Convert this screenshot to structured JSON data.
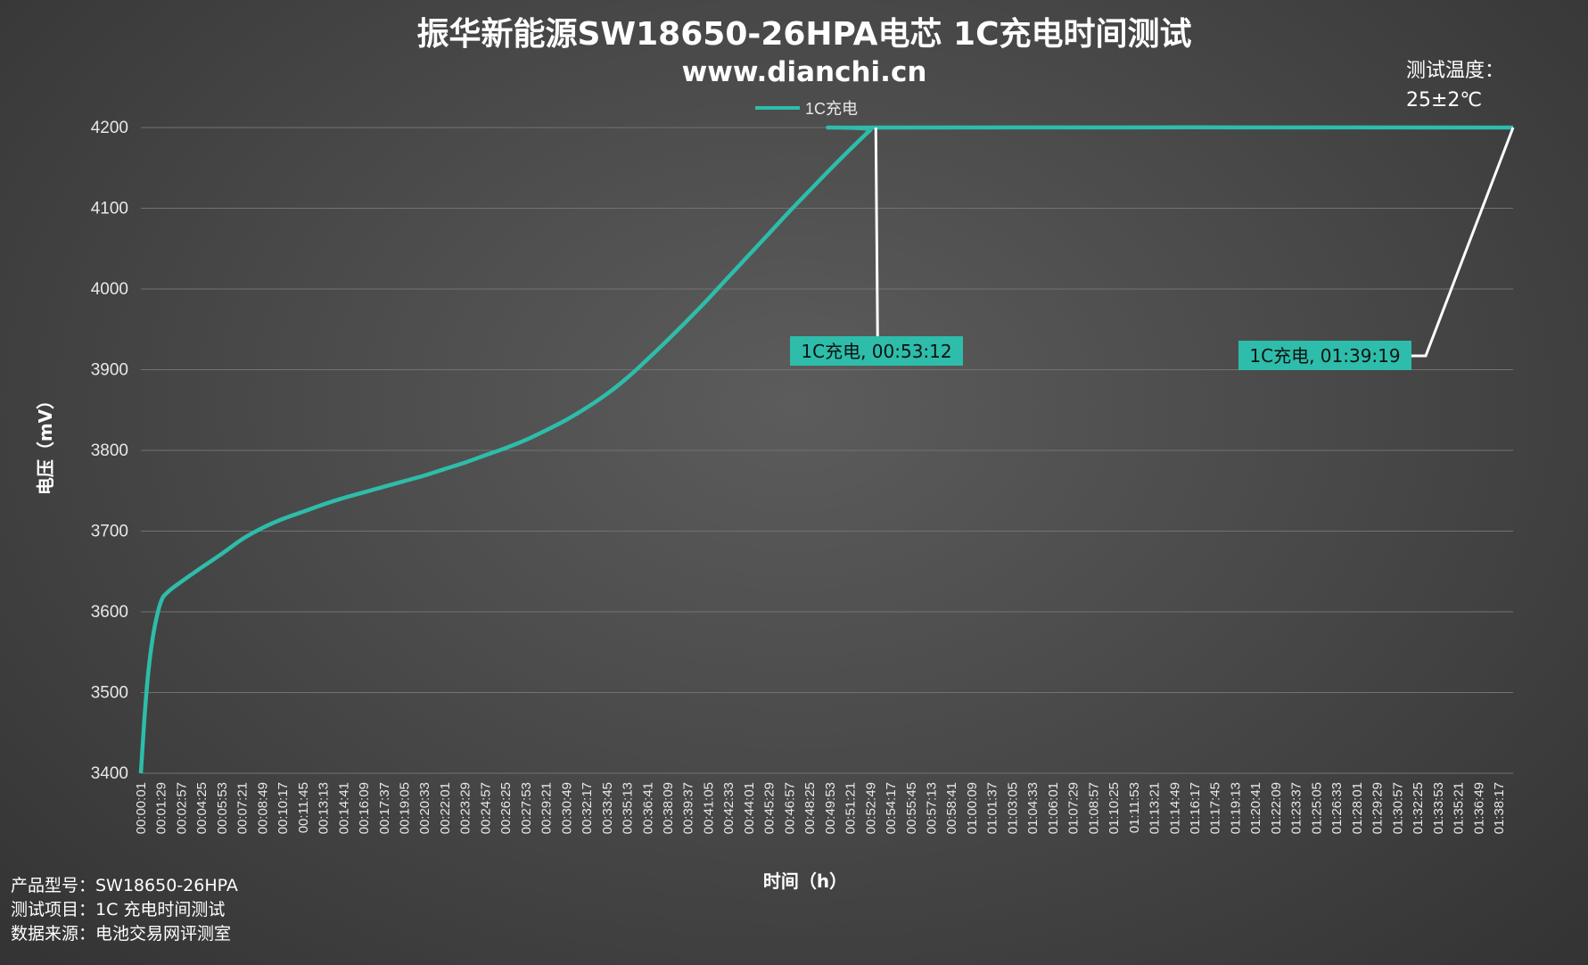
{
  "chart_data": {
    "type": "line",
    "title": "振华新能源SW18650-26HPA电芯 1C充电时间测试",
    "subtitle": "www.dianchi.cn",
    "xlabel": "时间（h）",
    "ylabel": "电压（mV）",
    "ylim": [
      3400,
      4200
    ],
    "yticks": [
      3400,
      3500,
      3600,
      3700,
      3800,
      3900,
      4000,
      4100,
      4200
    ],
    "grid": true,
    "legend_position": "top",
    "series": [
      {
        "name": "1C充电",
        "color": "#2dbdaa",
        "points": [
          [
            "00:00:01",
            3400
          ],
          [
            "00:00:17",
            3470
          ],
          [
            "00:00:35",
            3530
          ],
          [
            "00:01:00",
            3580
          ],
          [
            "00:01:29",
            3613
          ],
          [
            "00:02:00",
            3625
          ],
          [
            "00:03:00",
            3638
          ],
          [
            "00:04:25",
            3655
          ],
          [
            "00:05:53",
            3672
          ],
          [
            "00:07:21",
            3690
          ],
          [
            "00:08:49",
            3704
          ],
          [
            "00:10:17",
            3715
          ],
          [
            "00:11:45",
            3724
          ],
          [
            "00:13:13",
            3733
          ],
          [
            "00:14:41",
            3741
          ],
          [
            "00:16:09",
            3748
          ],
          [
            "00:17:37",
            3755
          ],
          [
            "00:19:05",
            3762
          ],
          [
            "00:20:33",
            3769
          ],
          [
            "00:22:01",
            3777
          ],
          [
            "00:23:29",
            3785
          ],
          [
            "00:24:57",
            3794
          ],
          [
            "00:26:25",
            3803
          ],
          [
            "00:27:53",
            3813
          ],
          [
            "00:29:21",
            3825
          ],
          [
            "00:30:49",
            3838
          ],
          [
            "00:32:17",
            3853
          ],
          [
            "00:33:45",
            3870
          ],
          [
            "00:35:13",
            3890
          ],
          [
            "00:36:41",
            3913
          ],
          [
            "00:38:09",
            3937
          ],
          [
            "00:39:37",
            3962
          ],
          [
            "00:41:05",
            3988
          ],
          [
            "00:42:33",
            4015
          ],
          [
            "00:44:01",
            4042
          ],
          [
            "00:45:29",
            4069
          ],
          [
            "00:46:57",
            4096
          ],
          [
            "00:48:25",
            4122
          ],
          [
            "00:49:53",
            4148
          ],
          [
            "00:51:21",
            4173
          ],
          [
            "00:52:49",
            4197
          ],
          [
            "00:53:12",
            4200
          ],
          [
            "01:39:19",
            4200
          ]
        ]
      }
    ],
    "x_tick_labels": [
      "00:00:01",
      "00:01:29",
      "00:02:57",
      "00:04:25",
      "00:05:53",
      "00:07:21",
      "00:08:49",
      "00:10:17",
      "00:11:45",
      "00:13:13",
      "00:14:41",
      "00:16:09",
      "00:17:37",
      "00:19:05",
      "00:20:33",
      "00:22:01",
      "00:23:29",
      "00:24:57",
      "00:26:25",
      "00:27:53",
      "00:29:21",
      "00:30:49",
      "00:32:17",
      "00:33:45",
      "00:35:13",
      "00:36:41",
      "00:38:09",
      "00:39:37",
      "00:41:05",
      "00:42:33",
      "00:44:01",
      "00:45:29",
      "00:46:57",
      "00:48:25",
      "00:49:53",
      "00:51:21",
      "00:52:49",
      "00:54:17",
      "00:55:45",
      "00:57:13",
      "00:58:41",
      "01:00:09",
      "01:01:37",
      "01:03:05",
      "01:04:33",
      "01:06:01",
      "01:07:29",
      "01:08:57",
      "01:10:25",
      "01:11:53",
      "01:13:21",
      "01:14:49",
      "01:16:17",
      "01:17:45",
      "01:19:13",
      "01:20:41",
      "01:22:09",
      "01:23:37",
      "01:25:05",
      "01:26:33",
      "01:28:01",
      "01:29:29",
      "01:30:57",
      "01:32:25",
      "01:33:53",
      "01:35:21",
      "01:36:49",
      "01:38:17"
    ],
    "annotations": [
      {
        "text": "1C充电, 00:53:12",
        "x": "00:53:12",
        "y": 4200,
        "label_color": "#2dbdaa"
      },
      {
        "text": "1C充电, 01:39:19",
        "x": "01:39:19",
        "y": 4200,
        "label_color": "#2dbdaa"
      }
    ],
    "side_note": {
      "line1": "测试温度：",
      "line2": "25±2℃"
    }
  },
  "footer": {
    "model": "产品型号：SW18650-26HPA",
    "item": "测试项目：1C 充电时间测试",
    "source": "数据来源：电池交易网评测室"
  }
}
